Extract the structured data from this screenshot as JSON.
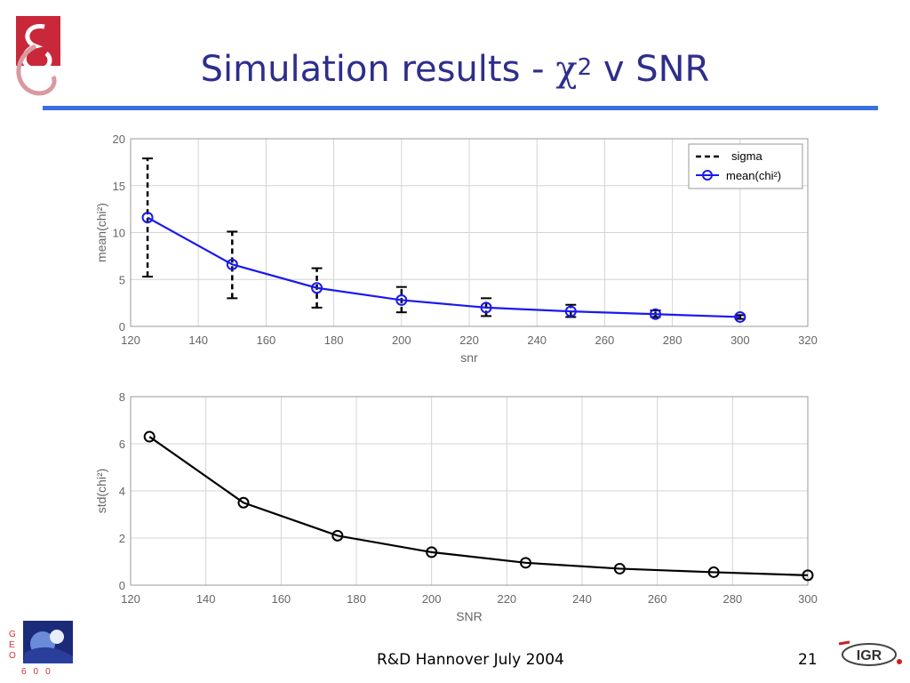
{
  "slide": {
    "title_prefix": "Simulation results - ",
    "title_chi": "χ",
    "title_exponent": "2",
    "title_suffix": " v SNR",
    "footer": "R&D Hannover July 2004",
    "page_number": "21",
    "geo_letters": [
      "G",
      "E",
      "O"
    ],
    "geo_numbers": "600",
    "igr_logo_text": "IGR"
  },
  "colors": {
    "title": "#2e2e8c",
    "rule": "#3a6fe0",
    "mean_series": "#1a1aee",
    "sigma_series": "#000000",
    "std_series": "#000000"
  },
  "chart_data": [
    {
      "type": "line",
      "x": [
        125,
        150,
        175,
        200,
        225,
        250,
        275,
        300
      ],
      "series": [
        {
          "name": "mean(chi²)",
          "values": [
            11.6,
            6.6,
            4.1,
            2.8,
            2.0,
            1.6,
            1.3,
            1.0
          ]
        },
        {
          "name": "sigma",
          "kind": "errorbar",
          "lower": [
            5.3,
            3.0,
            2.0,
            1.5,
            1.1,
            1.0,
            1.0,
            0.8
          ],
          "upper": [
            17.9,
            10.1,
            6.2,
            4.2,
            3.0,
            2.3,
            1.7,
            1.2
          ]
        }
      ],
      "xlabel": "snr",
      "ylabel": "mean(chi²)",
      "xlim": [
        120,
        320
      ],
      "ylim": [
        0,
        20
      ],
      "xticks": [
        "120",
        "140",
        "160",
        "180",
        "200",
        "220",
        "240",
        "260",
        "280",
        "300",
        "320"
      ],
      "yticks": [
        "0",
        "5",
        "10",
        "15",
        "20"
      ],
      "legend": [
        "sigma",
        "mean(chi²)"
      ],
      "legend_position": "top-right",
      "grid": true
    },
    {
      "type": "line",
      "x": [
        125,
        150,
        175,
        200,
        225,
        250,
        275,
        300
      ],
      "series": [
        {
          "name": "std(chi²)",
          "values": [
            6.3,
            3.5,
            2.1,
            1.4,
            0.95,
            0.7,
            0.55,
            0.42
          ]
        }
      ],
      "xlabel": "SNR",
      "ylabel": "std(chi²)",
      "xlim": [
        120,
        300
      ],
      "ylim": [
        0,
        8
      ],
      "xticks": [
        "120",
        "140",
        "160",
        "180",
        "200",
        "220",
        "240",
        "260",
        "280",
        "300"
      ],
      "yticks": [
        "0",
        "2",
        "4",
        "6",
        "8"
      ],
      "grid": true
    }
  ]
}
